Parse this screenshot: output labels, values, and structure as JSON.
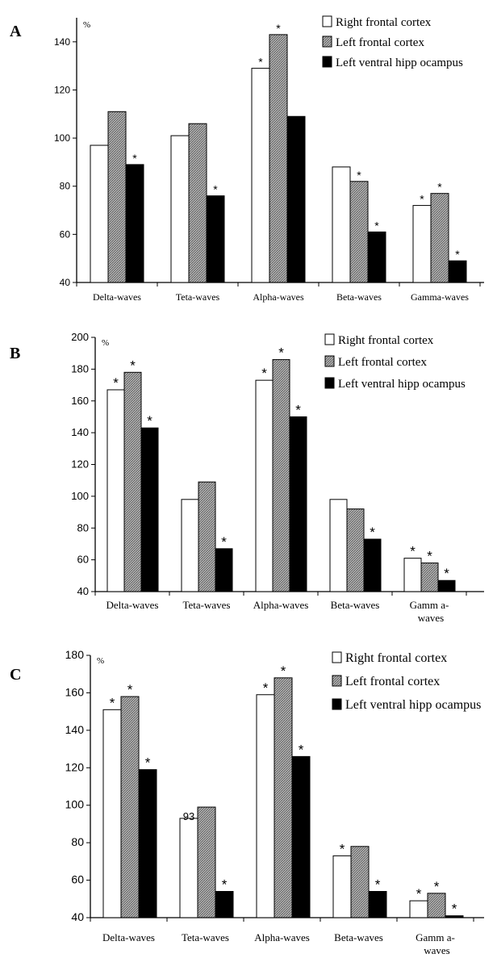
{
  "colors": {
    "right_frontal_cortex": "#ffffff",
    "left_frontal_cortex": "#9a9a9a",
    "left_ventral_hippocampus": "#000000",
    "axis": "#000000"
  },
  "chart_data": [
    {
      "panel_label": "A",
      "type": "bar",
      "unit_label": "%",
      "ylim": [
        40,
        150
      ],
      "yticks": [
        40,
        60,
        80,
        100,
        120,
        140
      ],
      "categories": [
        "Delta-waves",
        "Teta-waves",
        "Alpha-waves",
        "Beta-waves",
        "Gamma-waves"
      ],
      "legend_position": "top-right",
      "grid": false,
      "series": [
        {
          "name": "Right frontal cortex",
          "values": [
            97,
            101,
            129,
            88,
            72
          ],
          "stars": [
            false,
            false,
            true,
            false,
            true
          ]
        },
        {
          "name": "Left frontal cortex",
          "values": [
            111,
            106,
            143,
            82,
            77
          ],
          "stars": [
            false,
            false,
            true,
            true,
            true
          ]
        },
        {
          "name": "Left ventral hipp ocampus",
          "values": [
            89,
            76,
            109,
            61,
            49
          ],
          "stars": [
            true,
            true,
            false,
            true,
            true
          ]
        }
      ]
    },
    {
      "panel_label": "B",
      "type": "bar",
      "unit_label": "%",
      "ylim": [
        40,
        200
      ],
      "yticks": [
        40,
        60,
        80,
        100,
        120,
        140,
        160,
        180,
        200
      ],
      "categories": [
        "Delta-waves",
        "Teta-waves",
        "Alpha-waves",
        "Beta-waves",
        "Gamm a-waves"
      ],
      "legend_position": "top-right",
      "grid": false,
      "series": [
        {
          "name": "Right frontal cortex",
          "values": [
            167,
            98,
            173,
            98,
            61
          ],
          "stars": [
            true,
            false,
            true,
            false,
            true
          ]
        },
        {
          "name": "Left frontal cortex",
          "values": [
            178,
            109,
            186,
            92,
            58
          ],
          "stars": [
            true,
            false,
            true,
            false,
            true
          ]
        },
        {
          "name": "Left ventral hipp ocampus",
          "values": [
            143,
            67,
            150,
            73,
            47
          ],
          "stars": [
            true,
            true,
            true,
            true,
            true
          ]
        }
      ]
    },
    {
      "panel_label": "C",
      "type": "bar",
      "unit_label": "%",
      "ylim": [
        40,
        180
      ],
      "yticks": [
        40,
        60,
        80,
        100,
        120,
        140,
        160,
        180
      ],
      "categories": [
        "Delta-waves",
        "Teta-waves",
        "Alpha-waves",
        "Beta-waves",
        "Gamm a-waves"
      ],
      "legend_position": "top-right",
      "grid": false,
      "annotation": "93",
      "series": [
        {
          "name": "Right frontal cortex",
          "values": [
            151,
            93,
            159,
            73,
            49
          ],
          "stars": [
            true,
            false,
            true,
            true,
            true
          ]
        },
        {
          "name": "Left frontal cortex",
          "values": [
            158,
            99,
            168,
            78,
            53
          ],
          "stars": [
            true,
            false,
            true,
            false,
            true
          ]
        },
        {
          "name": "Left ventral hipp ocampus",
          "values": [
            119,
            54,
            126,
            54,
            41
          ],
          "stars": [
            true,
            true,
            true,
            true,
            true
          ]
        }
      ]
    }
  ]
}
